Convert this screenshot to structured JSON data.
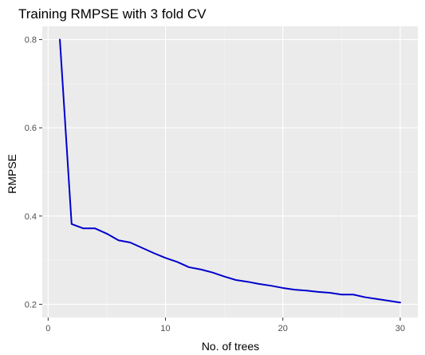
{
  "chart_data": {
    "type": "line",
    "title": "Training RMPSE with 3 fold CV",
    "xlabel": "No. of trees",
    "ylabel": "RMPSE",
    "xlim": [
      -0.5,
      31.5
    ],
    "ylim": [
      0.17,
      0.83
    ],
    "x_ticks": [
      0,
      10,
      20,
      30
    ],
    "y_ticks": [
      0.2,
      0.4,
      0.6,
      0.8
    ],
    "x_tick_labels": [
      "0",
      "10",
      "20",
      "30"
    ],
    "y_tick_labels": [
      "0.2",
      "0.4",
      "0.6",
      "0.8"
    ],
    "x_minor": [
      5,
      15,
      25
    ],
    "y_minor": [
      0.3,
      0.5,
      0.7
    ],
    "grid": true,
    "background": "#ebebeb",
    "series": [
      {
        "color": "#0000cd",
        "x": [
          1,
          2,
          3,
          4,
          5,
          6,
          7,
          8,
          9,
          10,
          11,
          12,
          13,
          14,
          15,
          16,
          17,
          18,
          19,
          20,
          21,
          22,
          23,
          24,
          25,
          26,
          27,
          28,
          29,
          30
        ],
        "y": [
          0.8,
          0.382,
          0.372,
          0.372,
          0.36,
          0.345,
          0.34,
          0.328,
          0.316,
          0.305,
          0.296,
          0.284,
          0.279,
          0.272,
          0.263,
          0.255,
          0.251,
          0.246,
          0.242,
          0.237,
          0.233,
          0.231,
          0.228,
          0.226,
          0.222,
          0.222,
          0.216,
          0.212,
          0.208,
          0.204
        ]
      }
    ]
  }
}
